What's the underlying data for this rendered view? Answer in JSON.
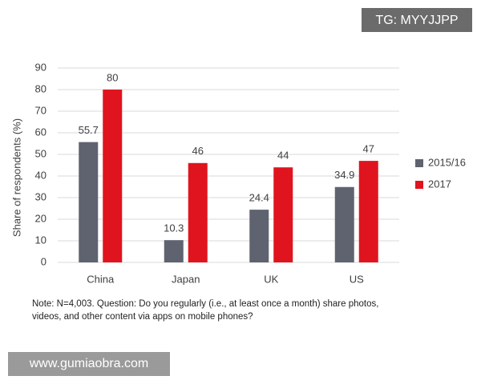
{
  "chart_data": {
    "type": "bar",
    "y_label": "Share of respondents (%)",
    "categories": [
      "China",
      "Japan",
      "UK",
      "US"
    ],
    "series": [
      {
        "name": "2015/16",
        "color": "#5f6370",
        "values": [
          55.7,
          10.3,
          24.4,
          34.9
        ]
      },
      {
        "name": "2017",
        "color": "#e0141e",
        "values": [
          80,
          46,
          44,
          47
        ]
      }
    ],
    "ylim": [
      0,
      90
    ],
    "yticks": [
      0,
      10,
      20,
      30,
      40,
      50,
      60,
      70,
      80,
      90
    ],
    "grid": true,
    "legend": "right",
    "note": [
      "Note: N=4,003. Question: Do you regularly (i.e., at least once a month) share photos,",
      "videos, and other content via apps on mobile phones?"
    ]
  },
  "watermarks": [
    "TG: MYYJJPP",
    "www.gumiaobra.com"
  ]
}
